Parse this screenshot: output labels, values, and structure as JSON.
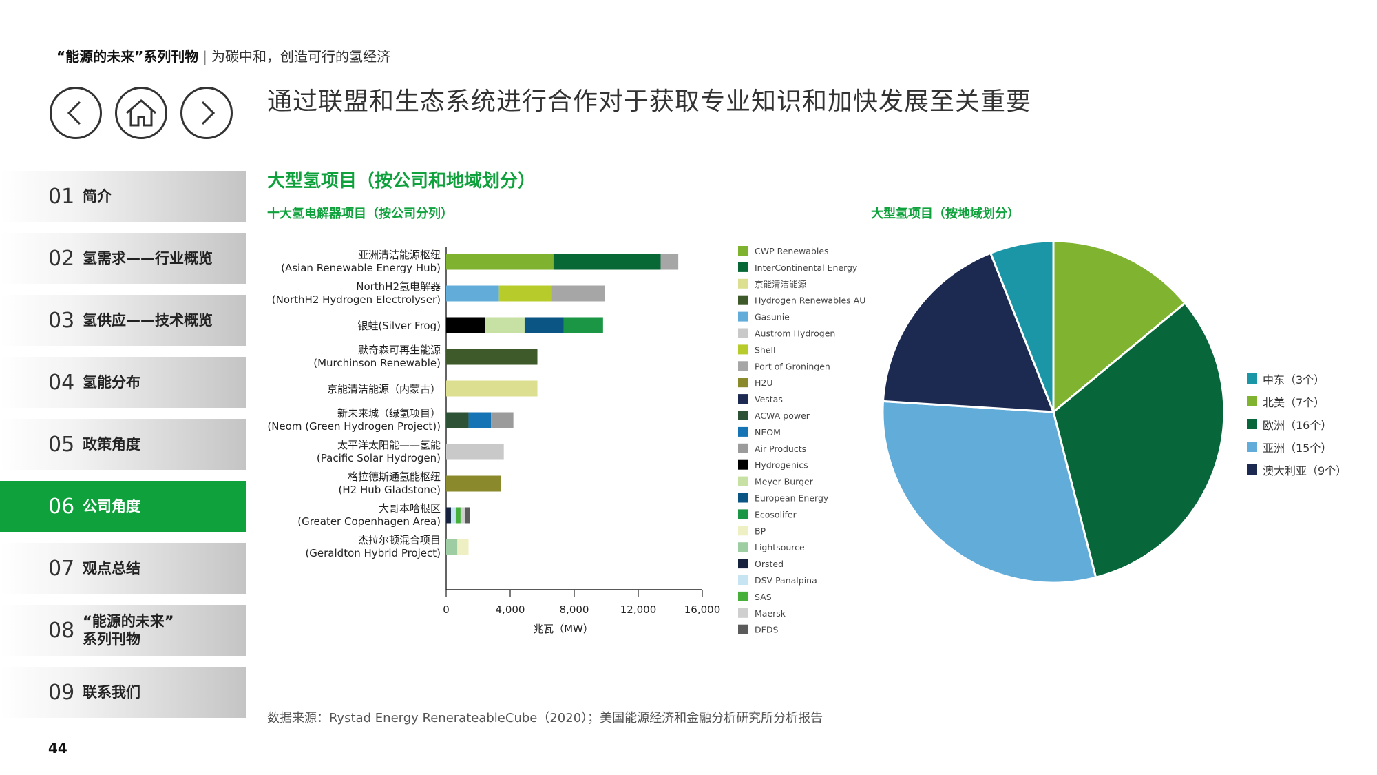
{
  "header": {
    "series": "“能源的未来”系列刊物",
    "separator": "|",
    "subtitle": "为碳中和，创造可行的氢经济"
  },
  "nav": {
    "back_icon": "chevron-left-icon",
    "home_icon": "home-icon",
    "forward_icon": "chevron-right-icon"
  },
  "page_title": "通过联盟和生态系统进行合作对于获取专业知识和加快发展至关重要",
  "sidebar": {
    "items": [
      {
        "num": "01",
        "label": "简介"
      },
      {
        "num": "02",
        "label": "氢需求——行业概览"
      },
      {
        "num": "03",
        "label": "氢供应——技术概览"
      },
      {
        "num": "04",
        "label": "氢能分布"
      },
      {
        "num": "05",
        "label": "政策角度"
      },
      {
        "num": "06",
        "label": "公司角度"
      },
      {
        "num": "07",
        "label": "观点总结"
      },
      {
        "num": "08",
        "label": "“能源的未来”",
        "label2": "系列刊物"
      },
      {
        "num": "09",
        "label": "联系我们"
      }
    ],
    "active_index": 5
  },
  "page_number": "44",
  "section_title": "大型氢项目（按公司和地域划分）",
  "source_note": "数据来源：Rystad Energy RenerateableCube（2020）；美国能源经济和金融分析研究所分析报告",
  "colors": {
    "accent": "#0ea13c",
    "active_sidebar": "#0ea13c"
  },
  "chart_data": [
    {
      "type": "bar",
      "orientation": "horizontal",
      "stacked": true,
      "title": "十大氢电解器项目（按公司分列）",
      "xlabel": "兆瓦（MW）",
      "xlim": [
        0,
        16000
      ],
      "xticks": [
        "0",
        "4,000",
        "8,000",
        "12,000",
        "16,000"
      ],
      "categories": [
        {
          "line1": "亚洲清洁能源枢纽",
          "line2": "(Asian Renewable Energy Hub)"
        },
        {
          "line1": "NorthH2氢电解器",
          "line2": "(NorthH2 Hydrogen Electrolyser)"
        },
        {
          "line1": "银蛙(Silver Frog)",
          "line2": ""
        },
        {
          "line1": "默奇森可再生能源",
          "line2": "(Murchinson Renewable)"
        },
        {
          "line1": "京能清洁能源（内蒙古）",
          "line2": ""
        },
        {
          "line1": "新未来城（绿氢项目）",
          "line2": "(Neom (Green Hydrogen Project))"
        },
        {
          "line1": "太平洋太阳能——氢能",
          "line2": "(Pacific Solar Hydrogen)"
        },
        {
          "line1": "格拉德斯通氢能枢纽",
          "line2": "(H2 Hub Gladstone)"
        },
        {
          "line1": "大哥本哈根区",
          "line2": "(Greater Copenhagen Area)"
        },
        {
          "line1": "杰拉尔顿混合项目",
          "line2": "(Geraldton Hybrid Project)"
        }
      ],
      "series": [
        {
          "name": "CWP Renewables",
          "color": "#7fb22e"
        },
        {
          "name": "InterContinental Energy",
          "color": "#076836"
        },
        {
          "name": "京能清洁能源",
          "color": "#dcdf8f"
        },
        {
          "name": "Hydrogen Renewables AU",
          "color": "#3e5a2a"
        },
        {
          "name": "Gasunie",
          "color": "#62acd9"
        },
        {
          "name": "Austrom Hydrogen",
          "color": "#c9c9c9"
        },
        {
          "name": "Shell",
          "color": "#b7cc2a"
        },
        {
          "name": "Port of Groningen",
          "color": "#a6a6a6"
        },
        {
          "name": "H2U",
          "color": "#8a8a2d"
        },
        {
          "name": "Vestas",
          "color": "#1c2a52"
        },
        {
          "name": "ACWA power",
          "color": "#2d5235"
        },
        {
          "name": "NEOM",
          "color": "#1774b4"
        },
        {
          "name": "Air Products",
          "color": "#9b9b9b"
        },
        {
          "name": "Hydrogenics",
          "color": "#000000"
        },
        {
          "name": "Meyer Burger",
          "color": "#c6e1a3"
        },
        {
          "name": "European Energy",
          "color": "#0b5584"
        },
        {
          "name": "Ecosolifer",
          "color": "#1a9645"
        },
        {
          "name": "BP",
          "color": "#eef0c4"
        },
        {
          "name": "Lightsource",
          "color": "#9fcda3"
        },
        {
          "name": "Orsted",
          "color": "#16223e"
        },
        {
          "name": "DSV Panalpina",
          "color": "#c7e4f3"
        },
        {
          "name": "SAS",
          "color": "#46b03a"
        },
        {
          "name": "Maersk",
          "color": "#cfcfcf"
        },
        {
          "name": "DFDS",
          "color": "#5b5b5b"
        }
      ],
      "bars": [
        [
          {
            "s": "CWP Renewables",
            "v": 6700
          },
          {
            "s": "InterContinental Energy",
            "v": 6700
          },
          {
            "s": "Port of Groningen",
            "v": 1100
          }
        ],
        [
          {
            "s": "Gasunie",
            "v": 3300
          },
          {
            "s": "Shell",
            "v": 3300
          },
          {
            "s": "Port of Groningen",
            "v": 3300
          }
        ],
        [
          {
            "s": "Hydrogenics",
            "v": 2450
          },
          {
            "s": "Meyer Burger",
            "v": 2450
          },
          {
            "s": "European Energy",
            "v": 2450
          },
          {
            "s": "Ecosolifer",
            "v": 2450
          }
        ],
        [
          {
            "s": "Hydrogen Renewables AU",
            "v": 5700
          }
        ],
        [
          {
            "s": "京能清洁能源",
            "v": 5700
          }
        ],
        [
          {
            "s": "ACWA power",
            "v": 1400
          },
          {
            "s": "NEOM",
            "v": 1400
          },
          {
            "s": "Air Products",
            "v": 1400
          }
        ],
        [
          {
            "s": "Austrom Hydrogen",
            "v": 3600
          }
        ],
        [
          {
            "s": "H2U",
            "v": 3400
          }
        ],
        [
          {
            "s": "Orsted",
            "v": 300
          },
          {
            "s": "DSV Panalpina",
            "v": 300
          },
          {
            "s": "SAS",
            "v": 300
          },
          {
            "s": "Maersk",
            "v": 300
          },
          {
            "s": "DFDS",
            "v": 300
          }
        ],
        [
          {
            "s": "Lightsource",
            "v": 700
          },
          {
            "s": "BP",
            "v": 700
          }
        ]
      ]
    },
    {
      "type": "pie",
      "title": "大型氢项目（按地域划分）",
      "slices": [
        {
          "label": "北美（7个）",
          "value": 7,
          "color": "#80b430"
        },
        {
          "label": "欧洲（16个）",
          "value": 16,
          "color": "#07673a"
        },
        {
          "label": "亚洲（15个）",
          "value": 15,
          "color": "#62acd9"
        },
        {
          "label": "澳大利亚（9个）",
          "value": 9,
          "color": "#1c2a52"
        },
        {
          "label": "中东（3个）",
          "value": 3,
          "color": "#1a96a6"
        }
      ],
      "legend": [
        {
          "label": "中东（3个）",
          "color": "#1a96a6"
        },
        {
          "label": "北美（7个）",
          "color": "#80b430"
        },
        {
          "label": "欧洲（16个）",
          "color": "#07673a"
        },
        {
          "label": "亚洲（15个）",
          "color": "#62acd9"
        },
        {
          "label": "澳大利亚（9个）",
          "color": "#1c2a52"
        }
      ],
      "legend_position": "right"
    }
  ]
}
